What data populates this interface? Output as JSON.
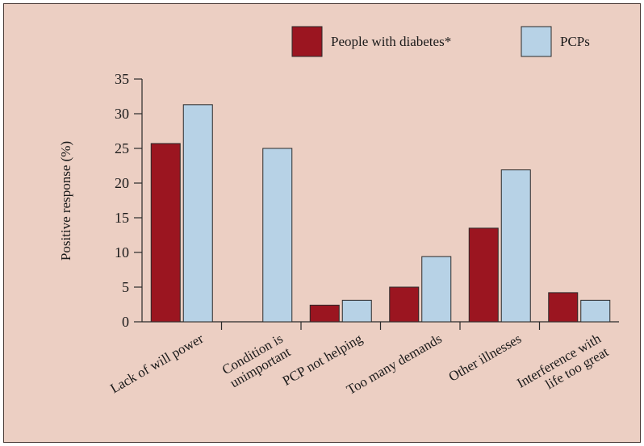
{
  "chart_data": {
    "type": "bar",
    "title": "",
    "xlabel": "",
    "ylabel": "Positive response (%)",
    "ylim": [
      0,
      35
    ],
    "yticks": [
      0,
      5,
      10,
      15,
      20,
      25,
      30,
      35
    ],
    "grid": false,
    "legend_position": "top-right",
    "categories": [
      [
        "Lack of will power"
      ],
      [
        "Condition is",
        "unimportant"
      ],
      [
        "PCP not helping"
      ],
      [
        "Too many demands"
      ],
      [
        "Other illnesses"
      ],
      [
        "Interference with",
        "life too great"
      ]
    ],
    "series": [
      {
        "name": "People with diabetes*",
        "color": "#9b1520",
        "values": [
          25.7,
          0,
          2.4,
          5.0,
          13.5,
          4.2
        ]
      },
      {
        "name": "PCPs",
        "color": "#b7d2e6",
        "values": [
          31.3,
          25.0,
          3.1,
          9.4,
          21.9,
          3.1
        ]
      }
    ]
  }
}
